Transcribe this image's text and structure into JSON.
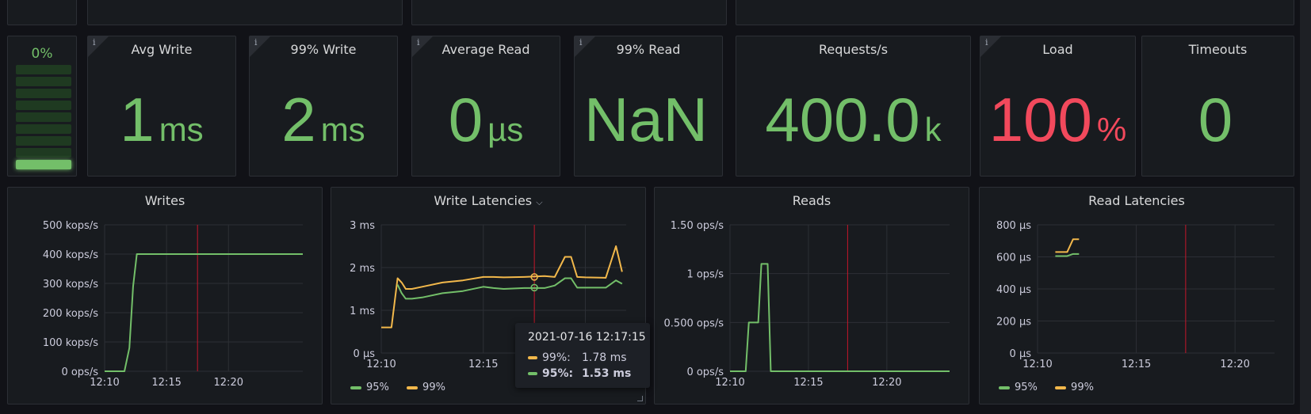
{
  "colors": {
    "green": "#73bf69",
    "yellow": "#f2b84b",
    "red": "#f2495c",
    "background": "#111217",
    "panel": "#181b1f"
  },
  "gauge": {
    "value_label": "0%",
    "fill_fraction": 0.0
  },
  "stats": [
    {
      "title": "Avg Write",
      "value": "1",
      "unit": "ms",
      "color": "#73bf69"
    },
    {
      "title": "99% Write",
      "value": "2",
      "unit": "ms",
      "color": "#73bf69"
    },
    {
      "title": "Average Read",
      "value": "0",
      "unit": "µs",
      "color": "#73bf69"
    },
    {
      "title": "99% Read",
      "value": "NaN",
      "unit": "",
      "color": "#73bf69"
    },
    {
      "title": "Requests/s",
      "value": "400.0",
      "unit": "k",
      "color": "#73bf69"
    },
    {
      "title": "Load",
      "value": "100",
      "unit": "%",
      "color": "#f2495c"
    },
    {
      "title": "Timeouts",
      "value": "0",
      "unit": "",
      "color": "#73bf69"
    }
  ],
  "info_icon": "i",
  "chart_data": [
    {
      "type": "line",
      "title": "Writes",
      "y_ticks": [
        "500 kops/s",
        "400 kops/s",
        "300 kops/s",
        "200 kops/s",
        "100 kops/s",
        "0 ops/s"
      ],
      "x_ticks": [
        "12:10",
        "12:15",
        "12:20"
      ],
      "ylim": [
        0,
        500
      ],
      "series": [
        {
          "color": "#73bf69",
          "x": [
            0,
            1,
            1.6,
            2,
            2.3,
            2.6,
            3,
            5,
            8,
            11,
            14,
            16
          ],
          "values": [
            0,
            0,
            0,
            80,
            290,
            400,
            400,
            400,
            400,
            400,
            400,
            400
          ]
        }
      ]
    },
    {
      "type": "line",
      "title": "Write Latencies",
      "y_ticks": [
        "3 ms",
        "2 ms",
        "1 ms",
        "0 µs"
      ],
      "x_ticks": [
        "12:10",
        "12:15"
      ],
      "ylim": [
        0,
        3
      ],
      "legend": [
        {
          "name": "95%",
          "color": "#73bf69"
        },
        {
          "name": "99%",
          "color": "#f2b84b"
        }
      ],
      "series": [
        {
          "name": "99%",
          "color": "#f2b84b",
          "x": [
            0,
            0.5,
            0.8,
            1,
            1.2,
            1.5,
            2,
            3,
            4,
            5,
            5.5,
            6,
            7,
            8,
            8.5,
            9,
            9.3,
            9.6,
            10,
            11,
            11.5,
            11.8
          ],
          "values": [
            0.6,
            0.6,
            1.75,
            1.65,
            1.5,
            1.5,
            1.55,
            1.65,
            1.7,
            1.78,
            1.78,
            1.77,
            1.78,
            1.8,
            1.78,
            2.25,
            2.25,
            1.78,
            1.77,
            1.76,
            2.5,
            1.9
          ]
        },
        {
          "name": "95%",
          "color": "#73bf69",
          "x": [
            0.8,
            1,
            1.2,
            1.5,
            2,
            3,
            4,
            5,
            5.5,
            6,
            7,
            8,
            8.5,
            9,
            9.3,
            9.6,
            10,
            11,
            11.5,
            11.8
          ],
          "values": [
            1.6,
            1.4,
            1.27,
            1.27,
            1.3,
            1.4,
            1.45,
            1.55,
            1.52,
            1.5,
            1.52,
            1.52,
            1.58,
            1.75,
            1.75,
            1.53,
            1.53,
            1.53,
            1.7,
            1.62
          ]
        }
      ],
      "tooltip": {
        "time": "2021-07-16 12:17:15",
        "rows": [
          {
            "name": "99%:",
            "value": "1.78 ms",
            "color": "#f2b84b"
          },
          {
            "name": "95%:",
            "value": "1.53 ms",
            "color": "#73bf69"
          }
        ]
      }
    },
    {
      "type": "line",
      "title": "Reads",
      "y_ticks": [
        "1.50 ops/s",
        "1 ops/s",
        "0.500 ops/s",
        "0 ops/s"
      ],
      "x_ticks": [
        "12:10",
        "12:15",
        "12:20"
      ],
      "ylim": [
        0,
        1.5
      ],
      "series": [
        {
          "color": "#73bf69",
          "x": [
            0,
            1,
            1.2,
            1.8,
            2,
            2.4,
            2.6,
            4,
            8,
            12,
            14
          ],
          "values": [
            0,
            0,
            0.5,
            0.5,
            1.1,
            1.1,
            0,
            0,
            0,
            0,
            0
          ]
        }
      ]
    },
    {
      "type": "line",
      "title": "Read Latencies",
      "y_ticks": [
        "800 µs",
        "600 µs",
        "400 µs",
        "200 µs",
        "0 µs"
      ],
      "x_ticks": [
        "12:10",
        "12:15",
        "12:20"
      ],
      "ylim": [
        0,
        800
      ],
      "legend": [
        {
          "name": "95%",
          "color": "#73bf69"
        },
        {
          "name": "99%",
          "color": "#f2b84b"
        }
      ],
      "series": [
        {
          "name": "99%",
          "color": "#f2b84b",
          "x": [
            0.9,
            1.5,
            1.8,
            2.1
          ],
          "values": [
            630,
            630,
            710,
            710
          ]
        },
        {
          "name": "95%",
          "color": "#73bf69",
          "x": [
            0.9,
            1.5,
            1.8,
            2.1
          ],
          "values": [
            605,
            605,
            618,
            618
          ]
        }
      ]
    }
  ]
}
